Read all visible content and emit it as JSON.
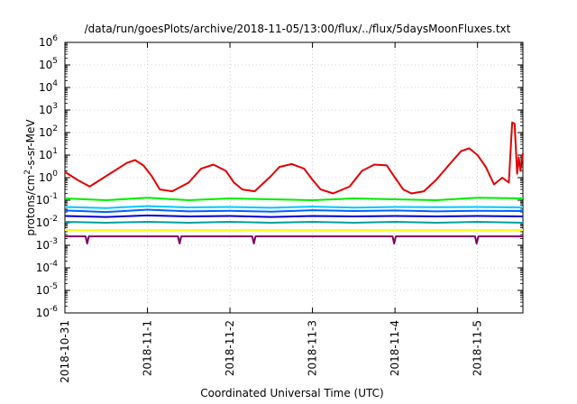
{
  "chart_data": {
    "type": "line",
    "title": "/data/run/goesPlots/archive/2018-11-05/13:00/flux/../flux/5daysMoonFluxes.txt",
    "xlabel": "Coordinated Universal Time (UTC)",
    "ylabel_main": "protons/cm",
    "ylabel_sup": "2",
    "ylabel_tail": "-s-sr-MeV",
    "yscale": "log",
    "ylim_exp": [
      -6,
      6
    ],
    "y_ticks": [
      {
        "base": "10",
        "exp": "6"
      },
      {
        "base": "10",
        "exp": "5"
      },
      {
        "base": "10",
        "exp": "4"
      },
      {
        "base": "10",
        "exp": "3"
      },
      {
        "base": "10",
        "exp": "2"
      },
      {
        "base": "10",
        "exp": "1"
      },
      {
        "base": "10",
        "exp": "0"
      },
      {
        "base": "10",
        "exp": "-1"
      },
      {
        "base": "10",
        "exp": "-2"
      },
      {
        "base": "10",
        "exp": "-3"
      },
      {
        "base": "10",
        "exp": "-4"
      },
      {
        "base": "10",
        "exp": "-5"
      },
      {
        "base": "10",
        "exp": "-6"
      }
    ],
    "x_start": "2018-10-31",
    "x_end": "2018-11-05",
    "x_ticks": [
      "2018-10-31",
      "2018-11-1",
      "2018-11-2",
      "2018-11-3",
      "2018-11-4",
      "2018-11-5"
    ],
    "x_tick_positions_days": [
      0,
      1,
      2,
      3,
      4,
      5
    ],
    "x_range_days": [
      0,
      5.55
    ],
    "grid": true,
    "series": [
      {
        "color": "#e00000",
        "x": [
          0.0,
          0.15,
          0.3,
          0.45,
          0.6,
          0.75,
          0.85,
          0.95,
          1.05,
          1.15,
          1.3,
          1.5,
          1.65,
          1.8,
          1.95,
          2.05,
          2.15,
          2.3,
          2.5,
          2.6,
          2.75,
          2.9,
          3.0,
          3.1,
          3.25,
          3.45,
          3.6,
          3.75,
          3.9,
          4.0,
          4.1,
          4.2,
          4.35,
          4.5,
          4.65,
          4.8,
          4.9,
          5.0,
          5.1,
          5.2,
          5.3,
          5.38,
          5.42,
          5.45,
          5.48,
          5.5,
          5.52,
          5.55
        ],
        "y": [
          1.8,
          0.8,
          0.4,
          0.9,
          2.0,
          4.5,
          6.0,
          3.5,
          1.2,
          0.3,
          0.25,
          0.6,
          2.5,
          3.8,
          2.0,
          0.6,
          0.3,
          0.25,
          1.2,
          3.0,
          4.0,
          2.5,
          0.8,
          0.3,
          0.2,
          0.4,
          2.0,
          3.8,
          3.5,
          1.0,
          0.3,
          0.2,
          0.25,
          0.8,
          3.5,
          15,
          20,
          10,
          3.0,
          0.5,
          1.0,
          0.6,
          280,
          250,
          1.5,
          8.0,
          2.0,
          12
        ]
      },
      {
        "color": "#00ee00",
        "x": [
          0.0,
          0.5,
          1.0,
          1.5,
          2.0,
          2.5,
          3.0,
          3.5,
          4.0,
          4.5,
          5.0,
          5.55
        ],
        "y": [
          0.12,
          0.1,
          0.13,
          0.1,
          0.12,
          0.11,
          0.1,
          0.12,
          0.11,
          0.1,
          0.13,
          0.12
        ]
      },
      {
        "color": "#00c8ff",
        "x": [
          0.0,
          0.5,
          1.0,
          1.5,
          2.0,
          2.5,
          3.0,
          3.5,
          4.0,
          4.5,
          5.0,
          5.55
        ],
        "y": [
          0.05,
          0.045,
          0.055,
          0.048,
          0.05,
          0.046,
          0.052,
          0.047,
          0.05,
          0.049,
          0.05,
          0.048
        ]
      },
      {
        "color": "#0060ff",
        "x": [
          0.0,
          0.5,
          1.0,
          1.5,
          2.0,
          2.5,
          3.0,
          3.5,
          4.0,
          4.5,
          5.0,
          5.55
        ],
        "y": [
          0.035,
          0.03,
          0.038,
          0.032,
          0.034,
          0.031,
          0.036,
          0.033,
          0.035,
          0.032,
          0.034,
          0.033
        ]
      },
      {
        "color": "#0000d0",
        "x": [
          0.0,
          0.5,
          1.0,
          1.5,
          2.0,
          2.5,
          3.0,
          3.5,
          4.0,
          4.5,
          5.0,
          5.55
        ],
        "y": [
          0.02,
          0.018,
          0.021,
          0.019,
          0.02,
          0.018,
          0.02,
          0.019,
          0.02,
          0.019,
          0.02,
          0.019
        ]
      },
      {
        "color": "#00a0a0",
        "x": [
          0.0,
          0.5,
          1.0,
          1.5,
          2.0,
          2.5,
          3.0,
          3.5,
          4.0,
          4.5,
          5.0,
          5.55
        ],
        "y": [
          0.011,
          0.01,
          0.011,
          0.01,
          0.011,
          0.01,
          0.011,
          0.01,
          0.011,
          0.01,
          0.011,
          0.01
        ]
      },
      {
        "color": "#ffff00",
        "x": [
          0.0,
          5.55
        ],
        "y": [
          0.0048,
          0.0048
        ]
      },
      {
        "color": "#800060",
        "x": [
          0.0,
          0.25,
          0.27,
          0.29,
          0.5,
          1.0,
          1.37,
          1.39,
          1.41,
          2.0,
          2.27,
          2.29,
          2.31,
          3.0,
          3.97,
          3.99,
          4.01,
          4.5,
          4.97,
          4.99,
          5.01,
          5.55
        ],
        "y": [
          0.0025,
          0.0025,
          0.0012,
          0.0025,
          0.0025,
          0.0025,
          0.0025,
          0.0012,
          0.0025,
          0.0025,
          0.0025,
          0.0012,
          0.0025,
          0.0025,
          0.0025,
          0.0012,
          0.0025,
          0.0025,
          0.0025,
          0.0012,
          0.0025,
          0.0025
        ]
      }
    ]
  }
}
